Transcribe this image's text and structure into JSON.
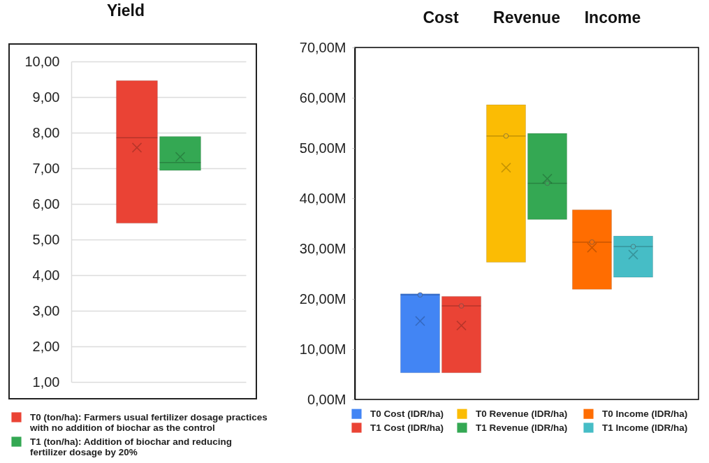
{
  "chart_data": [
    {
      "type": "box",
      "title": "Yield",
      "categories": [
        null
      ],
      "tick_labels": "y",
      "grid": "y",
      "legend": "bottom",
      "ylim": [
        1,
        10
      ],
      "yticks": [
        {
          "value": 1,
          "label": "1,00"
        },
        {
          "value": 2,
          "label": "2,00"
        },
        {
          "value": 3,
          "label": "3,00"
        },
        {
          "value": 4,
          "label": "4,00"
        },
        {
          "value": 5,
          "label": "5,00"
        },
        {
          "value": 6,
          "label": "6,00"
        },
        {
          "value": 7,
          "label": "7,00"
        },
        {
          "value": 8,
          "label": "8,00"
        },
        {
          "value": 9,
          "label": "9,00"
        },
        {
          "value": 10,
          "label": "10,00"
        }
      ],
      "series": [
        {
          "name": "T0 (ton/ha): Farmers usual fertilizer dosage practices with no addition of biochar as the control",
          "color": "#ea4335",
          "boxes": [
            {
              "low": 5.46,
              "q1": 5.46,
              "median": 7.86,
              "q3": 9.46,
              "high": 9.46,
              "mean": 7.58
            }
          ]
        },
        {
          "name": "T1 (ton/ha): Addition of biochar and reducing fertilizer dosage by 20%",
          "color": "#34a853",
          "boxes": [
            {
              "low": 6.94,
              "q1": 6.94,
              "median": 7.16,
              "q3": 7.89,
              "high": 7.89,
              "mean": 7.32
            }
          ]
        }
      ]
    },
    {
      "type": "box",
      "categories": [
        "Cost",
        "Revenue",
        "Income"
      ],
      "legend": "bottom",
      "ylim": [
        0,
        70000000
      ],
      "yticks": [
        {
          "value": 0,
          "label": "0,00M"
        },
        {
          "value": 10000000,
          "label": "10,00M"
        },
        {
          "value": 20000000,
          "label": "20,00M"
        },
        {
          "value": 30000000,
          "label": "30,00M"
        },
        {
          "value": 40000000,
          "label": "40,00M"
        },
        {
          "value": 50000000,
          "label": "50,00M"
        },
        {
          "value": 60000000,
          "label": "60,00M"
        },
        {
          "value": 70000000,
          "label": "70,00M"
        }
      ],
      "series": [
        {
          "name": "T0 Cost (IDR/ha)",
          "color": "#4285f4",
          "boxes": [
            {
              "low": 5300000,
              "q1": 5300000,
              "median": 20800000,
              "q3": 21000000,
              "high": 21000000,
              "mean": 15600000,
              "outliers": [
                20800000
              ]
            },
            null,
            null
          ]
        },
        {
          "name": "T1 Cost (IDR/ha)",
          "color": "#ea4335",
          "boxes": [
            {
              "low": 5300000,
              "q1": 5300000,
              "median": 18600000,
              "q3": 20500000,
              "high": 20500000,
              "mean": 14700000,
              "outliers": [
                18600000
              ]
            },
            null,
            null
          ]
        },
        {
          "name": "T0 Revenue  (IDR/ha)",
          "color": "#fbbc04",
          "boxes": [
            null,
            {
              "low": 27300000,
              "q1": 27300000,
              "median": 52400000,
              "q3": 58600000,
              "high": 58600000,
              "mean": 46100000,
              "outliers": [
                52400000
              ]
            },
            null
          ]
        },
        {
          "name": "T1 Revenue (IDR/ha)",
          "color": "#34a853",
          "boxes": [
            null,
            {
              "low": 35800000,
              "q1": 35800000,
              "median": 43000000,
              "q3": 52900000,
              "high": 52900000,
              "mean": 43900000,
              "outliers": [
                43000000
              ]
            },
            null
          ]
        },
        {
          "name": "T0 Income (IDR/ha)",
          "color": "#ff6d01",
          "boxes": [
            null,
            null,
            {
              "low": 21900000,
              "q1": 21900000,
              "median": 31300000,
              "q3": 37700000,
              "high": 37700000,
              "mean": 30200000,
              "outliers": [
                31300000
              ]
            }
          ]
        },
        {
          "name": "T1 Income (IDR/ha)",
          "color": "#46bdc6",
          "boxes": [
            null,
            null,
            {
              "low": 24300000,
              "q1": 24300000,
              "median": 30400000,
              "q3": 32500000,
              "high": 32500000,
              "mean": 28800000,
              "outliers": [
                30400000
              ]
            }
          ]
        }
      ]
    }
  ]
}
